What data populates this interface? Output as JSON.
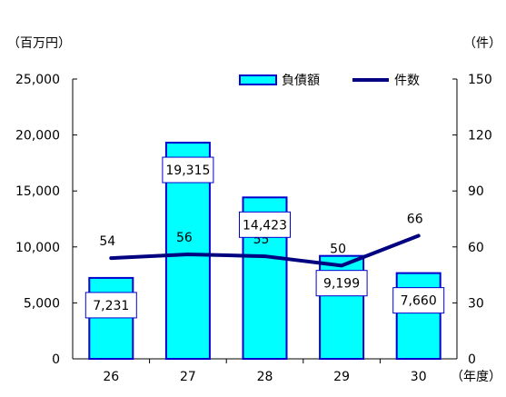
{
  "chart_data": {
    "type": "bar",
    "categories": [
      "26",
      "27",
      "28",
      "29",
      "30"
    ],
    "x_unit": "（年度）",
    "y_left": {
      "unit": "（百万円）",
      "ylim": [
        0,
        25000
      ],
      "ticks": [
        "0",
        "5,000",
        "10,000",
        "15,000",
        "20,000",
        "25,000"
      ],
      "tick_values": [
        0,
        5000,
        10000,
        15000,
        20000,
        25000
      ]
    },
    "y_right": {
      "unit": "（件）",
      "ylim": [
        0,
        150
      ],
      "ticks": [
        "0",
        "30",
        "60",
        "90",
        "120",
        "150"
      ],
      "tick_values": [
        0,
        30,
        60,
        90,
        120,
        150
      ]
    },
    "series": [
      {
        "name": "負債額",
        "type": "bar",
        "axis": "left",
        "values": [
          7231,
          19315,
          14423,
          9199,
          7660
        ],
        "labels": [
          "7,231",
          "19,315",
          "14,423",
          "9,199",
          "7,660"
        ],
        "fill": "#00FFFF",
        "stroke": "#0000CC"
      },
      {
        "name": "件数",
        "type": "line",
        "axis": "right",
        "values": [
          54,
          56,
          55,
          50,
          66
        ],
        "labels": [
          "54",
          "56",
          "55",
          "50",
          "66"
        ],
        "color": "#000080"
      }
    ],
    "legend": "top-right",
    "grid": false
  }
}
